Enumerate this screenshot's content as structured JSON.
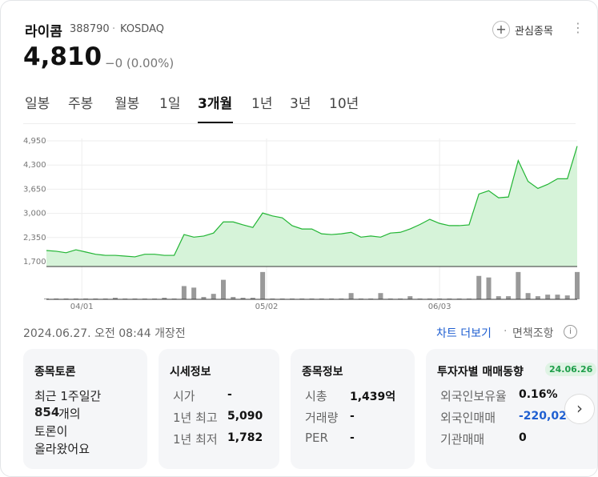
{
  "header": {
    "name": "라이콤",
    "code": "388790",
    "market": "KOSDAQ",
    "watch": "관심종목"
  },
  "price": {
    "current": "4,810",
    "change": "−0 (0.00%)"
  },
  "tabs": [
    "일봉",
    "주봉",
    "월봉",
    "1일",
    "3개월",
    "1년",
    "3년",
    "10년"
  ],
  "active_tab": 4,
  "chart": {
    "type": "line",
    "color": "#22b534",
    "values": [
      2000,
      1980,
      1940,
      2020,
      1960,
      1900,
      1870,
      1870,
      1850,
      1830,
      1900,
      1900,
      1870,
      1870,
      2430,
      2360,
      2390,
      2470,
      2770,
      2770,
      2690,
      2620,
      3010,
      2930,
      2880,
      2670,
      2580,
      2580,
      2450,
      2430,
      2450,
      2490,
      2360,
      2390,
      2360,
      2470,
      2490,
      2580,
      2700,
      2840,
      2730,
      2670,
      2670,
      2690,
      3520,
      3610,
      3420,
      3440,
      4420,
      3860,
      3670,
      3780,
      3930,
      3930,
      4810
    ],
    "volume": [
      1,
      1,
      1,
      1,
      1,
      1,
      1,
      2,
      1,
      1,
      1,
      1,
      2,
      1,
      17,
      15,
      3,
      7,
      25,
      3,
      2,
      2,
      35,
      1,
      1,
      1,
      1,
      1,
      1,
      1,
      1,
      8,
      1,
      1,
      8,
      1,
      1,
      4,
      1,
      1,
      1,
      1,
      1,
      1,
      30,
      28,
      4,
      4,
      35,
      8,
      4,
      6,
      6,
      5,
      35
    ],
    "vlim": [
      0,
      40
    ],
    "ylim": [
      1570,
      5015
    ],
    "yticks": [
      {
        "value": 1700,
        "label": "1,700"
      },
      {
        "value": 2350,
        "label": "2,350"
      },
      {
        "value": 3000,
        "label": "3,000"
      },
      {
        "value": 3650,
        "label": "3,650"
      },
      {
        "value": 4300,
        "label": "4,300"
      },
      {
        "value": 4950,
        "label": "4,950"
      }
    ],
    "xticks": [
      {
        "value": 3.6,
        "label": "04/01"
      },
      {
        "value": 22.4,
        "label": "05/02"
      },
      {
        "value": 40,
        "label": "06/03"
      }
    ],
    "grid": true
  },
  "footer": {
    "timestamp": "2024.06.27. 오전 08:44 개장전",
    "more": "차트 더보기",
    "disclaimer": "면책조항"
  },
  "cards": [
    {
      "title": "종목토론",
      "lines": [
        "최근 1주일간",
        "854",
        "개의",
        "토론이",
        "올라왔어요"
      ]
    },
    {
      "title": "시세정보",
      "rows": [
        [
          "시가",
          "-"
        ],
        [
          "1년 최고",
          "5,090"
        ],
        [
          "1년 최저",
          "1,782"
        ]
      ]
    },
    {
      "title": "종목정보",
      "rows": [
        [
          "시총",
          "1,439억"
        ],
        [
          "거래량",
          "-"
        ],
        [
          "PER",
          "-"
        ]
      ]
    },
    {
      "title": "투자자별 매매동향",
      "badge": "24.06.26",
      "rows": [
        [
          "외국인보유율",
          "0.16%"
        ],
        [
          "외국인매매",
          "-220,02"
        ],
        [
          "기관매매",
          "0"
        ]
      ]
    }
  ]
}
